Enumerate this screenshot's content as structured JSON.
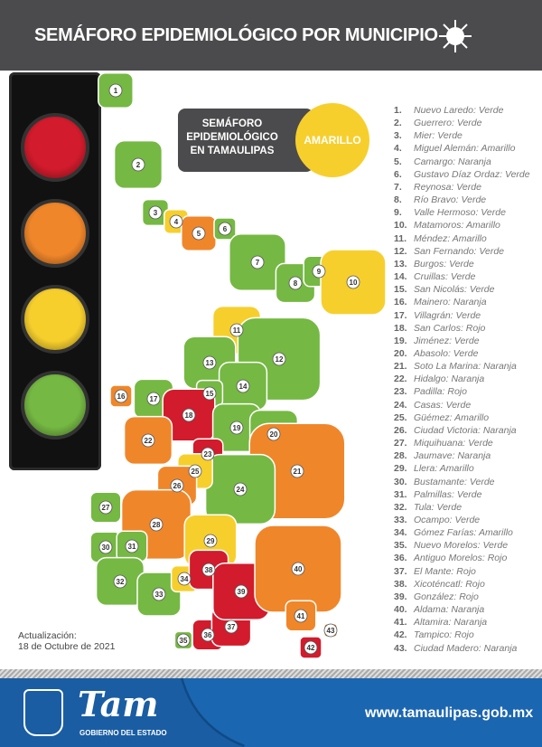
{
  "header": {
    "title": "SEMÁFORO EPIDEMIOLÓGICO POR MUNICIPIO"
  },
  "state": {
    "label_line1": "SEMÁFORO",
    "label_line2": "EPIDEMIOLÓGICO",
    "label_line3": "EN TAMAULIPAS",
    "status": "AMARILLO"
  },
  "colors": {
    "Verde": "#75b843",
    "Amarillo": "#f7cf2d",
    "Naranja": "#f0862a",
    "Rojo": "#d21b2c",
    "header": "#4b4b4d",
    "footer": "#1b66b0"
  },
  "traffic_light": [
    "#d21b2c",
    "#f0862a",
    "#f7cf2d",
    "#75b843"
  ],
  "municipios": [
    {
      "n": "1.",
      "name": "Nuevo Laredo",
      "status": "Verde"
    },
    {
      "n": "2.",
      "name": "Guerrero",
      "status": "Verde"
    },
    {
      "n": "3.",
      "name": "Mier",
      "status": "Verde"
    },
    {
      "n": "4.",
      "name": "Miguel Alemán",
      "status": "Amarillo"
    },
    {
      "n": "5.",
      "name": "Camargo",
      "status": "Naranja"
    },
    {
      "n": "6.",
      "name": "Gustavo Díaz Ordaz",
      "status": "Verde"
    },
    {
      "n": "7.",
      "name": "Reynosa",
      "status": "Verde"
    },
    {
      "n": "8.",
      "name": "Río Bravo",
      "status": "Verde"
    },
    {
      "n": "9.",
      "name": "Valle Hermoso",
      "status": "Verde"
    },
    {
      "n": "10.",
      "name": "Matamoros",
      "status": "Amarillo"
    },
    {
      "n": "11.",
      "name": "Méndez",
      "status": "Amarillo"
    },
    {
      "n": "12.",
      "name": "San Fernando",
      "status": "Verde"
    },
    {
      "n": "13.",
      "name": "Burgos",
      "status": "Verde"
    },
    {
      "n": "14.",
      "name": "Cruillas",
      "status": "Verde"
    },
    {
      "n": "15.",
      "name": "San Nicolás",
      "status": "Verde"
    },
    {
      "n": "16.",
      "name": "Mainero",
      "status": "Naranja"
    },
    {
      "n": "17.",
      "name": "Villagrán",
      "status": "Verde"
    },
    {
      "n": "18.",
      "name": "San Carlos",
      "status": "Rojo"
    },
    {
      "n": "19.",
      "name": "Jiménez",
      "status": "Verde"
    },
    {
      "n": "20.",
      "name": "Abasolo",
      "status": "Verde"
    },
    {
      "n": "21.",
      "name": "Soto La Marina",
      "status": "Naranja"
    },
    {
      "n": "22.",
      "name": "Hidalgo",
      "status": "Naranja"
    },
    {
      "n": "23.",
      "name": "Padilla",
      "status": "Rojo"
    },
    {
      "n": "24.",
      "name": "Casas",
      "status": "Verde"
    },
    {
      "n": "25.",
      "name": "Güémez",
      "status": "Amarillo"
    },
    {
      "n": "26.",
      "name": "Ciudad Victoria",
      "status": "Naranja"
    },
    {
      "n": "27.",
      "name": "Miquihuana",
      "status": "Verde"
    },
    {
      "n": "28.",
      "name": "Jaumave",
      "status": "Naranja"
    },
    {
      "n": "29.",
      "name": "Llera",
      "status": "Amarillo"
    },
    {
      "n": "30.",
      "name": "Bustamante",
      "status": "Verde"
    },
    {
      "n": "31.",
      "name": "Palmillas",
      "status": "Verde"
    },
    {
      "n": "32.",
      "name": "Tula",
      "status": "Verde"
    },
    {
      "n": "33.",
      "name": "Ocampo",
      "status": "Verde"
    },
    {
      "n": "34.",
      "name": "Gómez Farías",
      "status": "Amarillo"
    },
    {
      "n": "35.",
      "name": "Nuevo Morelos",
      "status": "Verde"
    },
    {
      "n": "36.",
      "name": "Antiguo Morelos",
      "status": "Rojo"
    },
    {
      "n": "37.",
      "name": "El Mante",
      "status": "Rojo"
    },
    {
      "n": "38.",
      "name": "Xicoténcatl",
      "status": "Rojo"
    },
    {
      "n": "39.",
      "name": "González",
      "status": "Rojo"
    },
    {
      "n": "40.",
      "name": "Aldama",
      "status": "Naranja"
    },
    {
      "n": "41.",
      "name": "Altamira",
      "status": "Naranja"
    },
    {
      "n": "42.",
      "name": "Tampico",
      "status": "Rojo"
    },
    {
      "n": "43.",
      "name": "Ciudad Madero",
      "status": "Naranja"
    }
  ],
  "update": {
    "label": "Actualización:",
    "date": "18 de Octubre de 2021"
  },
  "footer": {
    "logo": "Tam",
    "logo_sub": "GOBIERNO DEL ESTADO",
    "url": "www.tamaulipas.gob.mx"
  }
}
